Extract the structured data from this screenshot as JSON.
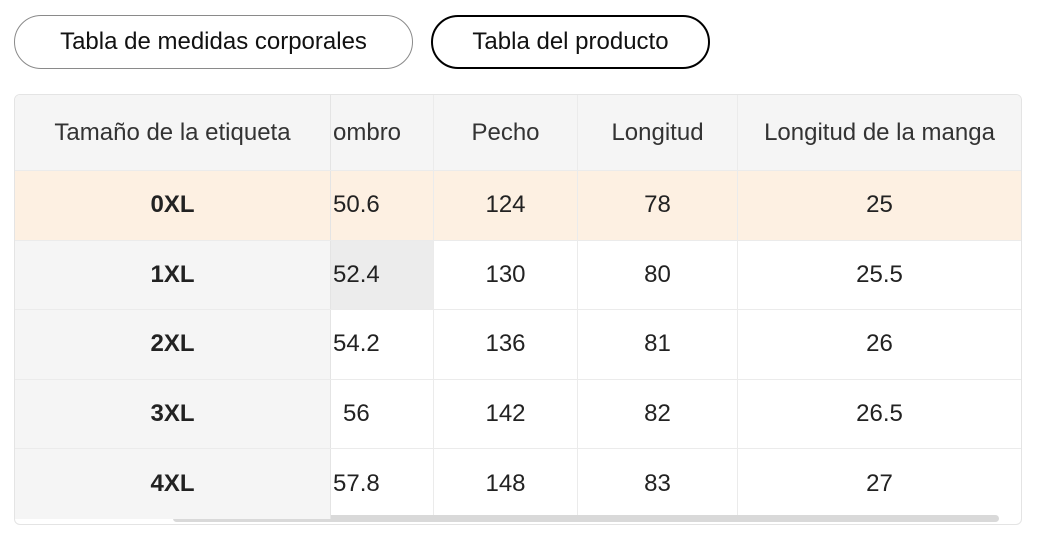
{
  "tabs": {
    "body_measurements": "Tabla de medidas corporales",
    "product_table": "Tabla del producto"
  },
  "table": {
    "headers": {
      "label_size": "Tamaño de la etiqueta",
      "shoulder": "ombro",
      "chest": "Pecho",
      "length": "Longitud",
      "sleeve_length": "Longitud de la manga"
    },
    "rows": [
      {
        "size": "0XL",
        "shoulder": "50.6",
        "chest": "124",
        "length": "78",
        "sleeve": "25"
      },
      {
        "size": "1XL",
        "shoulder": "52.4",
        "chest": "130",
        "length": "80",
        "sleeve": "25.5"
      },
      {
        "size": "2XL",
        "shoulder": "54.2",
        "chest": "136",
        "length": "81",
        "sleeve": "26"
      },
      {
        "size": "3XL",
        "shoulder": "56",
        "chest": "142",
        "length": "82",
        "sleeve": "26.5"
      },
      {
        "size": "4XL",
        "shoulder": "57.8",
        "chest": "148",
        "length": "83",
        "sleeve": "27"
      }
    ],
    "highlight_color": "#fdf0e2"
  }
}
